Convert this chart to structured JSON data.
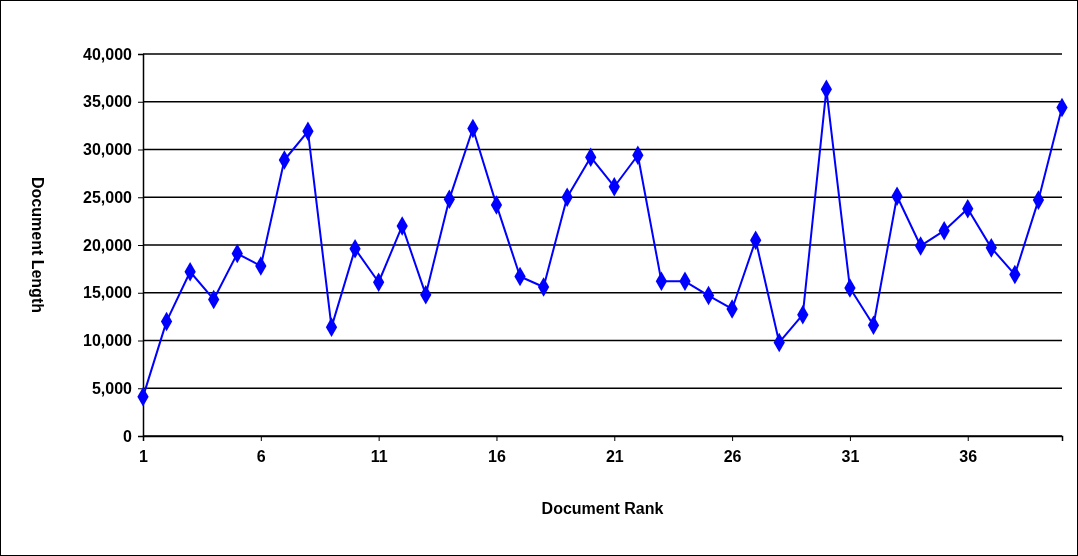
{
  "chart_data": {
    "type": "line",
    "xlabel": "Document Rank",
    "ylabel": "Document Length",
    "x": [
      1,
      2,
      3,
      4,
      5,
      6,
      7,
      8,
      9,
      10,
      11,
      12,
      13,
      14,
      15,
      16,
      17,
      18,
      19,
      20,
      21,
      22,
      23,
      24,
      25,
      26,
      27,
      28,
      29,
      30,
      31,
      32,
      33,
      34,
      35,
      36,
      37,
      38,
      39,
      40
    ],
    "series": [
      {
        "color": "#0000ff",
        "values": [
          4100,
          12000,
          17200,
          14300,
          19100,
          17800,
          28900,
          31900,
          11400,
          19600,
          16100,
          22000,
          14800,
          24800,
          32200,
          24200,
          16700,
          15600,
          25000,
          29200,
          26100,
          29400,
          16200,
          16200,
          14700,
          13300,
          20500,
          9800,
          12700,
          36300,
          15500,
          11600,
          25100,
          19900,
          21500,
          23800,
          19700,
          16900,
          24700,
          34400
        ]
      }
    ],
    "xlim": [
      1,
      40
    ],
    "xticks": [
      1,
      6,
      11,
      16,
      21,
      26,
      31,
      36
    ],
    "ylim": [
      0,
      40000
    ],
    "yticks": [
      {
        "value": 0,
        "label": "0"
      },
      {
        "value": 5000,
        "label": "5,000"
      },
      {
        "value": 10000,
        "label": "10,000"
      },
      {
        "value": 15000,
        "label": "15,000"
      },
      {
        "value": 20000,
        "label": "20,000"
      },
      {
        "value": 25000,
        "label": "25,000"
      },
      {
        "value": 30000,
        "label": "30,000"
      },
      {
        "value": 35000,
        "label": "35,000"
      },
      {
        "value": 40000,
        "label": "40,000"
      }
    ],
    "grid": "y",
    "marker": "diamond",
    "line_style": "solid"
  }
}
